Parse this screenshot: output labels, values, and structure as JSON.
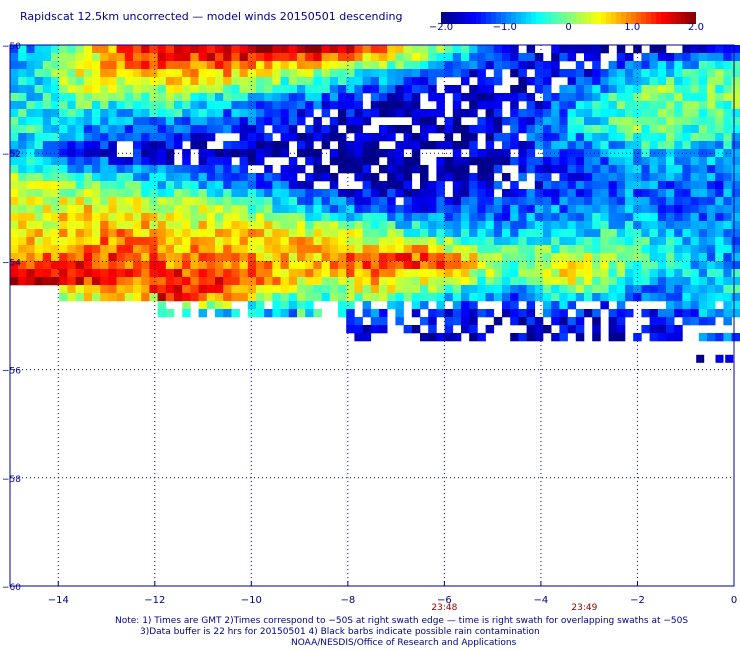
{
  "title": "Rapidscat 12.5km uncorrected — model winds 20150501 descending",
  "colorbar": {
    "ticks": [
      "−2.0",
      "−1.0",
      "0",
      "1.0",
      "2.0"
    ],
    "tick_values": [
      -2.0,
      -1.0,
      0,
      1.0,
      2.0
    ],
    "colors": [
      "#00008b",
      "#0000ff",
      "#0080ff",
      "#00ffff",
      "#80ff80",
      "#ffff00",
      "#ff8000",
      "#ff0000",
      "#8b0000"
    ]
  },
  "footer": {
    "line1": "Note: 1) Times are GMT 2)Times correspond to −50S at right swath edge — time is right swath for overlapping swaths at −50S",
    "line2": "3)Data buffer is 22 hrs for 20150501 4) Black barbs indicate possible rain contamination",
    "line3": "NOAA/NESDIS/Office of Research and Applications"
  },
  "chart_data": {
    "type": "heatmap",
    "title": "Rapidscat 12.5km uncorrected — model winds 20150501 descending",
    "xlabel": "",
    "ylabel": "",
    "xlim": [
      -15,
      0
    ],
    "ylim": [
      -60,
      -50
    ],
    "x_ticks": [
      -14,
      -12,
      -10,
      -8,
      -6,
      -4,
      -2,
      0
    ],
    "x_tick_labels": [
      "−14",
      "−12",
      "−10",
      "−8",
      "−6",
      "−4",
      "−2",
      "0"
    ],
    "y_ticks": [
      -50,
      -52,
      -54,
      -56,
      -58,
      -60
    ],
    "y_tick_labels": [
      "−50",
      "−52",
      "−54",
      "−56",
      "−58",
      "−60"
    ],
    "color_range": [
      -2.0,
      2.0
    ],
    "grid": true,
    "time_labels": [
      {
        "lon": -6.0,
        "text": "23:48"
      },
      {
        "lon": -3.1,
        "text": "23:49"
      }
    ],
    "coverage_lat_min": -55.4,
    "rows": [
      {
        "lat": -50.1,
        "values": [
          -0.8,
          0.3,
          1.2,
          1.5,
          1.8,
          1.9,
          1.6,
          1.2,
          0.4,
          -0.6,
          -1.4,
          -1.6,
          -1.8,
          -1.7,
          -1.4
        ]
      },
      {
        "lat": -50.5,
        "values": [
          -0.6,
          0.5,
          1.0,
          0.9,
          0.8,
          0.4,
          0.1,
          -0.4,
          -1.0,
          -1.5,
          -1.7,
          -1.6,
          -1.2,
          -0.5,
          -0.2
        ]
      },
      {
        "lat": -51.0,
        "values": [
          -0.5,
          0.0,
          -0.4,
          -0.2,
          -0.6,
          -1.0,
          -1.2,
          -1.6,
          -1.9,
          -1.8,
          -1.7,
          -1.2,
          -0.3,
          0.2,
          -0.1
        ]
      },
      {
        "lat": -51.5,
        "values": [
          -0.4,
          -0.8,
          -1.2,
          -1.0,
          -1.3,
          -1.5,
          -1.8,
          -1.9,
          -1.9,
          -1.8,
          -1.4,
          -0.8,
          -0.2,
          0.1,
          -0.4
        ]
      },
      {
        "lat": -52.0,
        "values": [
          -0.9,
          -1.4,
          -1.6,
          -1.8,
          -1.7,
          -1.9,
          -1.9,
          -2.0,
          -1.9,
          -1.8,
          -1.6,
          -1.2,
          -1.0,
          -0.6,
          -0.8
        ]
      },
      {
        "lat": -52.5,
        "values": [
          0.1,
          -0.2,
          -0.6,
          -0.8,
          -1.0,
          -1.4,
          -1.7,
          -1.8,
          -1.9,
          -1.7,
          -1.5,
          -1.4,
          -1.2,
          -1.0,
          -1.1
        ]
      },
      {
        "lat": -53.0,
        "values": [
          0.4,
          0.6,
          0.5,
          0.3,
          0.0,
          -0.4,
          -0.8,
          -1.2,
          -1.4,
          -1.3,
          -1.2,
          -1.0,
          -0.9,
          -1.1,
          -1.0
        ]
      },
      {
        "lat": -53.5,
        "values": [
          0.5,
          0.8,
          0.9,
          0.6,
          0.7,
          0.8,
          0.4,
          0.2,
          -0.2,
          -0.6,
          -0.8,
          -0.6,
          -0.4,
          -0.6,
          -0.9
        ]
      },
      {
        "lat": -54.0,
        "values": [
          1.0,
          1.4,
          1.2,
          0.9,
          1.0,
          0.7,
          0.8,
          1.3,
          1.5,
          0.8,
          0.0,
          0.4,
          0.3,
          -0.4,
          -0.8
        ]
      },
      {
        "lat": -54.3,
        "values": [
          1.6,
          1.7,
          1.2,
          1.5,
          1.3,
          0.9,
          0.6,
          0.8,
          0.6,
          0.2,
          -0.4,
          0.6,
          -0.2,
          -0.8,
          -0.6
        ]
      },
      {
        "lat": -54.6,
        "values": [
          null,
          0.4,
          0.6,
          1.5,
          1.2,
          0.2,
          -0.2,
          0.3,
          0.0,
          -0.6,
          -1.0,
          -0.2,
          -0.6,
          -1.2,
          -0.4
        ]
      },
      {
        "lat": -54.9,
        "values": [
          null,
          null,
          null,
          -0.4,
          -0.6,
          -0.8,
          -0.4,
          -1.0,
          -1.2,
          -1.4,
          -1.6,
          -1.2,
          -1.6,
          -1.4,
          -0.8
        ]
      },
      {
        "lat": -55.2,
        "values": [
          null,
          null,
          null,
          null,
          null,
          null,
          null,
          -1.6,
          -1.8,
          -1.6,
          -1.8,
          -1.7,
          -1.8,
          -1.6,
          -1.2
        ]
      }
    ],
    "isolated_points": [
      {
        "lat": -55.8,
        "lon": -0.7,
        "value": -2.0
      },
      {
        "lat": -55.8,
        "lon": -0.3,
        "value": -1.6
      },
      {
        "lat": -55.8,
        "lon": -0.1,
        "value": -1.6
      }
    ]
  }
}
